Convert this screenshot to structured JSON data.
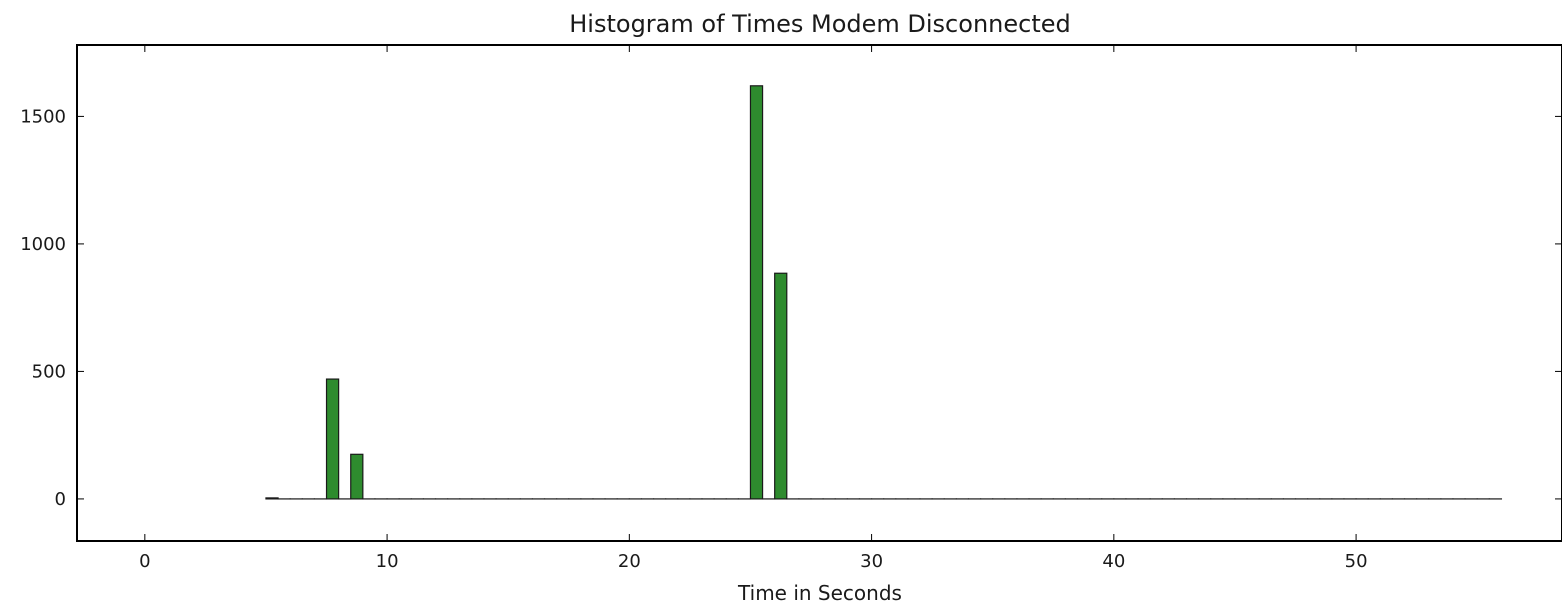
{
  "chart_data": {
    "type": "bar",
    "title": "Histogram of Times Modem Disconnected",
    "xlabel": "Time in Seconds",
    "ylabel": "",
    "xlim": [
      -2.8,
      58.5
    ],
    "ylim": [
      -165,
      1780
    ],
    "xticks": [
      0,
      10,
      20,
      30,
      40,
      50
    ],
    "yticks": [
      0,
      500,
      1000,
      1500
    ],
    "bar_width": 0.5,
    "bar_color": "#2e8b2e",
    "edge_color": "#1a1a1a",
    "grid": false,
    "legend": "none",
    "x": [
      5,
      5.5,
      6,
      6.5,
      7,
      7.5,
      8,
      8.5,
      9,
      9.5,
      10,
      10.5,
      11,
      11.5,
      12,
      12.5,
      13,
      13.5,
      14,
      14.5,
      15,
      15.5,
      16,
      16.5,
      17,
      17.5,
      18,
      18.5,
      19,
      19.5,
      20,
      20.5,
      21,
      21.5,
      22,
      22.5,
      23,
      23.5,
      24,
      24.5,
      25,
      25.5,
      26,
      26.5,
      27,
      27.5,
      28,
      28.5,
      29,
      29.5,
      30,
      30.5,
      31,
      31.5,
      32,
      32.5,
      33,
      33.5,
      34,
      34.5,
      35,
      35.5,
      36,
      36.5,
      37,
      37.5,
      38,
      38.5,
      39,
      39.5,
      40,
      40.5,
      41,
      41.5,
      42,
      42.5,
      43,
      43.5,
      44,
      44.5,
      45,
      45.5,
      46,
      46.5,
      47,
      47.5,
      48,
      48.5,
      49,
      49.5,
      50,
      50.5,
      51,
      51.5,
      52,
      52.5,
      53,
      53.5,
      54,
      54.5,
      55,
      55.5
    ],
    "values": [
      4,
      0,
      0,
      0,
      0,
      470,
      0,
      175,
      0,
      0,
      0,
      0,
      0,
      0,
      0,
      0,
      0,
      0,
      0,
      0,
      0,
      0,
      0,
      0,
      0,
      0,
      0,
      0,
      0,
      0,
      0,
      0,
      0,
      0,
      0,
      0,
      0,
      0,
      0,
      0,
      1620,
      0,
      885,
      0,
      0,
      0,
      0,
      0,
      0,
      0,
      0,
      0,
      0,
      0,
      0,
      0,
      0,
      0,
      0,
      0,
      0,
      0,
      0,
      0,
      0,
      0,
      0,
      0,
      0,
      0,
      0,
      0,
      0,
      0,
      0,
      0,
      0,
      0,
      0,
      0,
      0,
      0,
      0,
      0,
      0,
      0,
      0,
      0,
      0,
      0,
      0,
      0,
      0,
      0,
      0,
      0,
      0,
      0,
      0,
      0,
      0,
      0
    ]
  }
}
